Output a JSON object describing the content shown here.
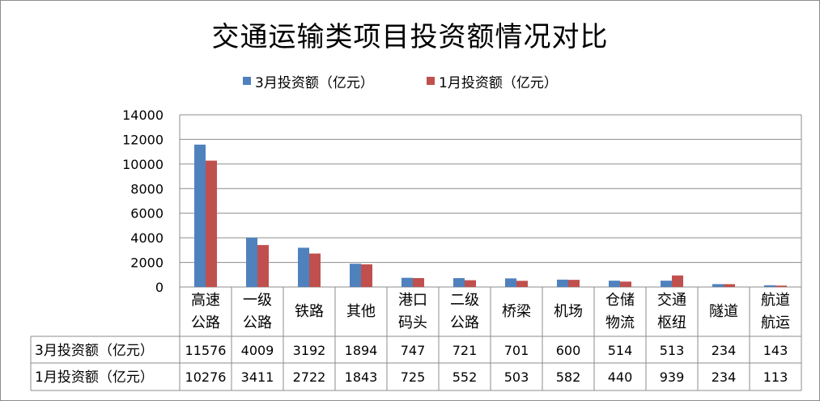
{
  "colors": {
    "series_1": "#4f81bd",
    "series_2": "#c0504d",
    "grid": "#8c8c8c"
  },
  "chart_data": {
    "type": "bar",
    "title": "交通运输类项目投资额情况对比",
    "categories": [
      [
        "高速",
        "公路"
      ],
      [
        "一级",
        "公路"
      ],
      [
        "铁路"
      ],
      [
        "其他"
      ],
      [
        "港口",
        "码头"
      ],
      [
        "二级",
        "公路"
      ],
      [
        "桥梁"
      ],
      [
        "机场"
      ],
      [
        "仓储",
        "物流"
      ],
      [
        "交通",
        "枢纽"
      ],
      [
        "隧道"
      ],
      [
        "航道",
        "航运"
      ]
    ],
    "series": [
      {
        "name": "3月投资额（亿元）",
        "values": [
          11576,
          4009,
          3192,
          1894,
          747,
          721,
          701,
          600,
          514,
          513,
          234,
          143
        ]
      },
      {
        "name": "1月投资额（亿元）",
        "values": [
          10276,
          3411,
          2722,
          1843,
          725,
          552,
          503,
          582,
          440,
          939,
          234,
          113
        ]
      }
    ],
    "ylim": [
      0,
      14000
    ],
    "yticks": [
      0,
      2000,
      4000,
      6000,
      8000,
      10000,
      12000,
      14000
    ],
    "grid": true,
    "legend_position": "top-center",
    "data_table": true
  }
}
